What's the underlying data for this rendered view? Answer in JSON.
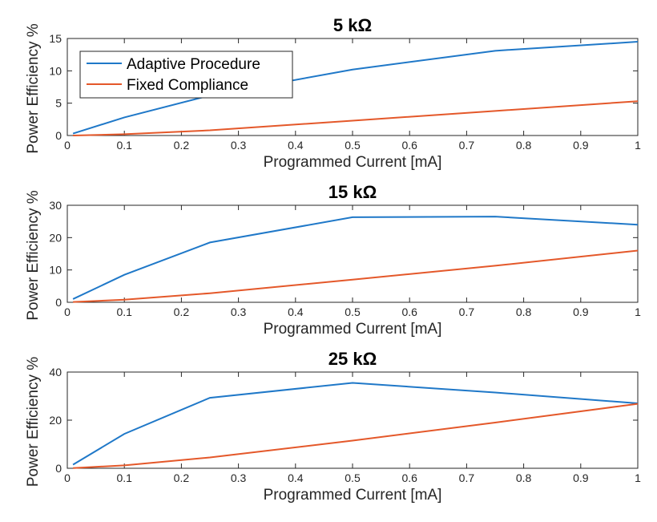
{
  "colors": {
    "adaptive": "#1f78c8",
    "fixed": "#e4582a",
    "axis": "#262626"
  },
  "chart_data": [
    {
      "type": "line",
      "title": "5 kΩ",
      "xlabel": "Programmed Current [mA]",
      "ylabel": "Power Efficiency %",
      "xlim": [
        0,
        1
      ],
      "ylim": [
        0,
        15
      ],
      "xticks": [
        0,
        0.1,
        0.2,
        0.3,
        0.4,
        0.5,
        0.6,
        0.7,
        0.8,
        0.9,
        1
      ],
      "yticks": [
        0,
        5,
        10,
        15
      ],
      "legend": {
        "placement": "top-left",
        "entries": [
          "Adaptive Procedure",
          "Fixed Compliance"
        ]
      },
      "x": [
        0.01,
        0.1,
        0.25,
        0.5,
        0.75,
        1
      ],
      "series": [
        {
          "name": "Adaptive Procedure",
          "values": [
            0.3,
            2.8,
            6.2,
            10.2,
            13.1,
            14.5
          ]
        },
        {
          "name": "Fixed Compliance",
          "values": [
            0.0,
            0.2,
            0.8,
            2.3,
            3.8,
            5.3
          ]
        }
      ]
    },
    {
      "type": "line",
      "title": "15 kΩ",
      "xlabel": "Programmed Current [mA]",
      "ylabel": "Power Efficiency %",
      "xlim": [
        0,
        1
      ],
      "ylim": [
        0,
        30
      ],
      "xticks": [
        0,
        0.1,
        0.2,
        0.3,
        0.4,
        0.5,
        0.6,
        0.7,
        0.8,
        0.9,
        1
      ],
      "yticks": [
        0,
        10,
        20,
        30
      ],
      "x": [
        0.01,
        0.1,
        0.25,
        0.5,
        0.75,
        1
      ],
      "series": [
        {
          "name": "Adaptive Procedure",
          "values": [
            1.0,
            8.5,
            18.5,
            26.3,
            26.5,
            24.0
          ]
        },
        {
          "name": "Fixed Compliance",
          "values": [
            0.1,
            0.8,
            2.8,
            7.0,
            11.3,
            16.0
          ]
        }
      ]
    },
    {
      "type": "line",
      "title": "25 kΩ",
      "xlabel": "Programmed Current [mA]",
      "ylabel": "Power Efficiency %",
      "xlim": [
        0,
        1
      ],
      "ylim": [
        0,
        40
      ],
      "xticks": [
        0,
        0.1,
        0.2,
        0.3,
        0.4,
        0.5,
        0.6,
        0.7,
        0.8,
        0.9,
        1
      ],
      "yticks": [
        0,
        20,
        40
      ],
      "x": [
        0.01,
        0.1,
        0.25,
        0.5,
        0.75,
        1
      ],
      "series": [
        {
          "name": "Adaptive Procedure",
          "values": [
            1.5,
            14.3,
            29.3,
            35.5,
            31.5,
            27.0
          ]
        },
        {
          "name": "Fixed Compliance",
          "values": [
            0.1,
            1.2,
            4.5,
            11.5,
            19.0,
            26.8
          ]
        }
      ]
    }
  ]
}
